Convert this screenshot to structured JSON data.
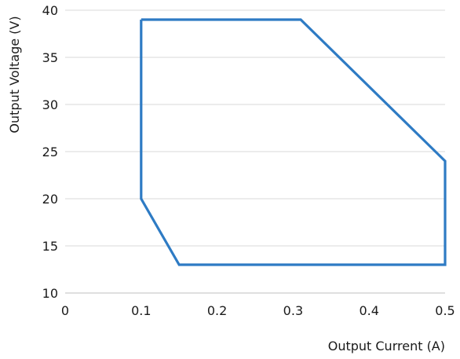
{
  "chart_data": {
    "type": "line",
    "title": "",
    "xlabel": "Output Current (A)",
    "ylabel": "Output Voltage (V)",
    "xlim": [
      0,
      0.5
    ],
    "ylim": [
      10,
      40
    ],
    "x_ticks": [
      0,
      0.1,
      0.2,
      0.3,
      0.4,
      0.5
    ],
    "x_tick_labels": [
      "0",
      "0.1",
      "0.2",
      "0.3",
      "0.4",
      "0.5"
    ],
    "y_ticks": [
      10,
      15,
      20,
      25,
      30,
      35,
      40
    ],
    "y_tick_labels": [
      "10",
      "15",
      "20",
      "25",
      "30",
      "35",
      "40"
    ],
    "grid": "horizontal",
    "legend": "none",
    "series": [
      {
        "color": "#2e7bc4",
        "closed": true,
        "points": [
          {
            "x": 0.1,
            "y": 39
          },
          {
            "x": 0.31,
            "y": 39
          },
          {
            "x": 0.5,
            "y": 24
          },
          {
            "x": 0.5,
            "y": 13
          },
          {
            "x": 0.15,
            "y": 13
          },
          {
            "x": 0.1,
            "y": 20
          },
          {
            "x": 0.1,
            "y": 39
          }
        ]
      }
    ]
  }
}
